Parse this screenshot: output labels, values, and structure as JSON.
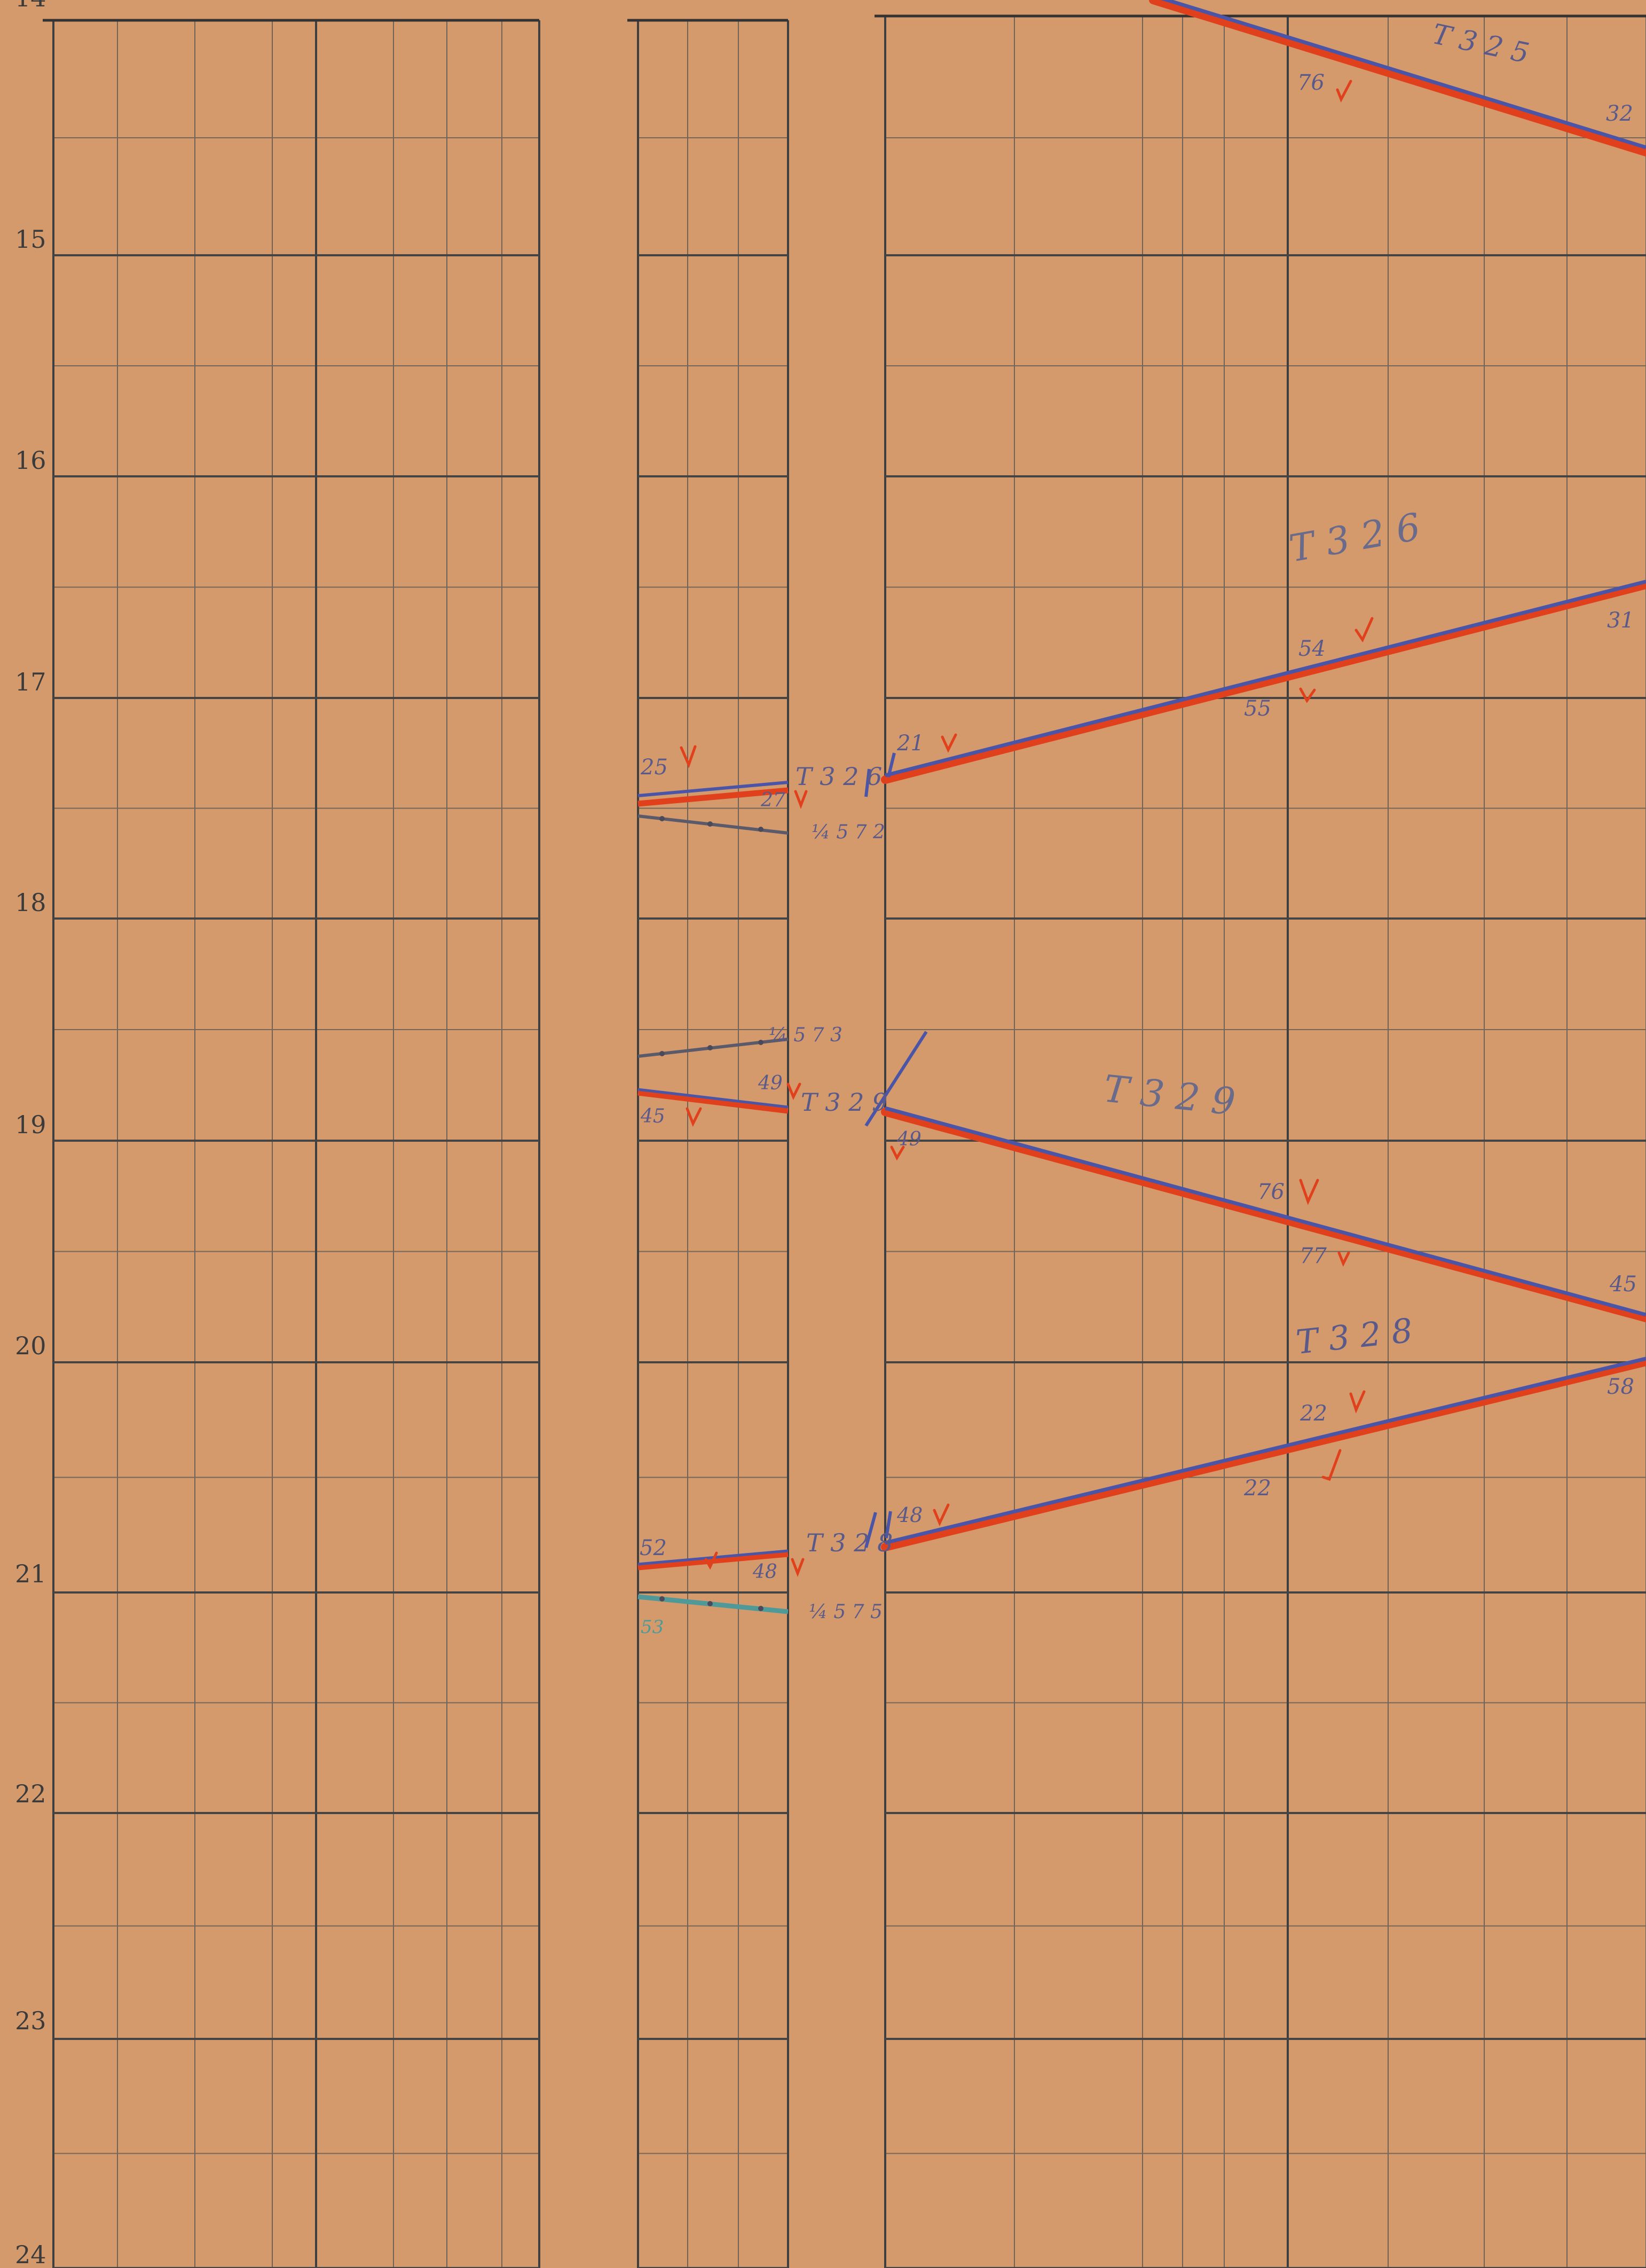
{
  "chart_data": {
    "type": "diagram",
    "description_source": "train graph sheet",
    "hours": [
      "14",
      "15",
      "16",
      "17",
      "18",
      "19",
      "20",
      "21",
      "22",
      "23",
      "24"
    ],
    "colors": {
      "paper": "#d59a6c",
      "grid_major": "#4a4a4a",
      "grid_minor": "#7a6a5a",
      "red_pencil": "#e0401c",
      "blue_pencil": "#4a55a8",
      "teal_pencil": "#4f9a98"
    },
    "train_labels": {
      "t325": "T 3 2 5",
      "t326": "T 3 2 6",
      "t329": "T 3 2 9",
      "t328": "T 3 2 8",
      "mid_a": "T 3 2 6",
      "mid_b": "T 3 2 9",
      "mid_c": "T 3 2 8"
    },
    "numbers": {
      "n76": "76",
      "n32": "32",
      "n54": "54",
      "n55": "55",
      "n31": "31",
      "n21": "21",
      "n25": "25",
      "n27": "27",
      "f572": "¼ 5 7 2",
      "f573": "¼ 5 7 3",
      "n49": "49",
      "n45": "45",
      "n49b": "49",
      "n76b": "76",
      "n77": "77",
      "n45b": "45",
      "n22a": "22",
      "n22b": "22",
      "n58": "58",
      "n52": "52",
      "n48": "48",
      "n48b": "48",
      "n53": "53",
      "f575": "¼ 5 7 5"
    }
  }
}
